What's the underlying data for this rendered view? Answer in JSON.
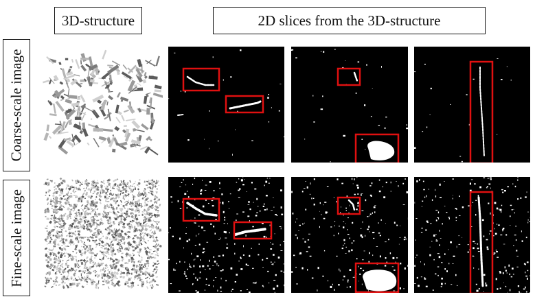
{
  "headers": {
    "structure": "3D-structure",
    "slices": "2D slices from the 3D-structure"
  },
  "rows": [
    {
      "label": "Coarse-scale image",
      "scale": "coarse"
    },
    {
      "label": "Fine-scale image",
      "scale": "fine"
    }
  ],
  "colors": {
    "highlight_box": "#e01010",
    "slice_background": "#000000",
    "pore_phase": "#ffffff",
    "structure_gray": "#8a8a8a"
  }
}
